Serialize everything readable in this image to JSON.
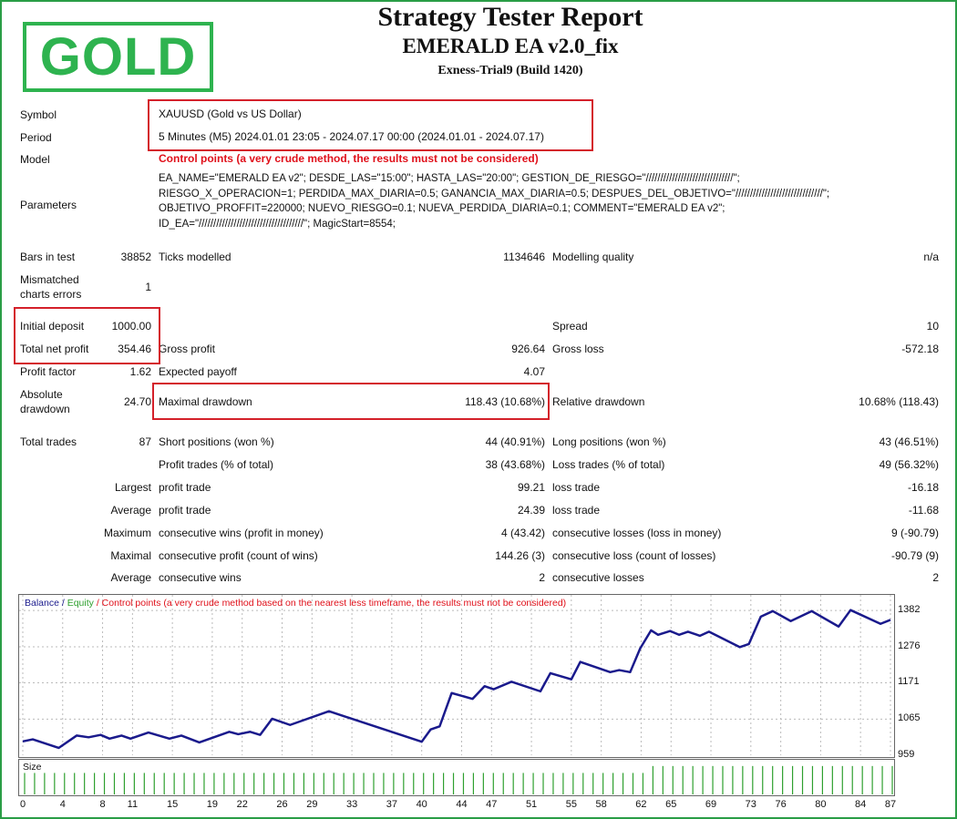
{
  "logo_text": "GOLD",
  "header": {
    "title": "Strategy Tester Report",
    "ea_name": "EMERALD EA v2.0_fix",
    "server": "Exness-Trial9 (Build 1420)"
  },
  "info": {
    "symbol_label": "Symbol",
    "symbol_value": "XAUUSD (Gold vs US Dollar)",
    "period_label": "Period",
    "period_value": "5 Minutes (M5) 2024.01.01 23:05 - 2024.07.17 00:00 (2024.01.01 - 2024.07.17)",
    "model_label": "Model",
    "model_value": "Control points (a very crude method, the results must not be considered)",
    "parameters_label": "Parameters",
    "parameters_value": "EA_NAME=\"EMERALD EA v2\"; DESDE_LAS=\"15:00\"; HASTA_LAS=\"20:00\"; GESTION_DE_RIESGO=\"//////////////////////////////\";\nRIESGO_X_OPERACION=1; PERDIDA_MAX_DIARIA=0.5; GANANCIA_MAX_DIARIA=0.5; DESPUES_DEL_OBJETIVO=\"//////////////////////////////\";\nOBJETIVO_PROFFIT=220000; NUEVO_RIESGO=0.1; NUEVA_PERDIDA_DIARIA=0.1; COMMENT=\"EMERALD EA v2\";\nID_EA=\"////////////////////////////////////\"; MagicStart=8554;"
  },
  "stats": [
    {
      "l1": "Bars in test",
      "v1": "38852",
      "l2": "Ticks modelled",
      "v2": "1134646",
      "l3": "Modelling quality",
      "v3": "n/a"
    },
    {
      "l1": "Mismatched\ncharts errors",
      "v1": "1",
      "l2": "",
      "v2": "",
      "l3": "",
      "v3": ""
    },
    {
      "l1": "Initial deposit",
      "v1": "1000.00",
      "l2": "",
      "v2": "",
      "l3": "Spread",
      "v3": "10"
    },
    {
      "l1": "Total net profit",
      "v1": "354.46",
      "l2": "Gross profit",
      "v2": "926.64",
      "l3": "Gross loss",
      "v3": "-572.18"
    },
    {
      "l1": "Profit factor",
      "v1": "1.62",
      "l2": "Expected payoff",
      "v2": "4.07",
      "l3": "",
      "v3": ""
    },
    {
      "l1": "Absolute\ndrawdown",
      "v1": "24.70",
      "l2": "Maximal drawdown",
      "v2": "118.43 (10.68%)",
      "l3": "Relative drawdown",
      "v3": "10.68% (118.43)"
    },
    {
      "l1": "Total trades",
      "v1": "87",
      "l2": "Short positions (won %)",
      "v2": "44 (40.91%)",
      "l3": "Long positions (won %)",
      "v3": "43 (46.51%)"
    },
    {
      "l1": "",
      "v1": "",
      "l2": "Profit trades (% of total)",
      "v2": "38 (43.68%)",
      "l3": "Loss trades (% of total)",
      "v3": "49 (56.32%)"
    },
    {
      "l1": "",
      "v1": "Largest",
      "l2": "profit trade",
      "v2": "99.21",
      "l3": "loss trade",
      "v3": "-16.18"
    },
    {
      "l1": "",
      "v1": "Average",
      "l2": "profit trade",
      "v2": "24.39",
      "l3": "loss trade",
      "v3": "-11.68"
    },
    {
      "l1": "",
      "v1": "Maximum",
      "l2": "consecutive wins (profit in money)",
      "v2": "4 (43.42)",
      "l3": "consecutive losses (loss in money)",
      "v3": "9 (-90.79)"
    },
    {
      "l1": "",
      "v1": "Maximal",
      "l2": "consecutive profit (count of wins)",
      "v2": "144.26 (3)",
      "l3": "consecutive loss (count of losses)",
      "v3": "-90.79 (9)"
    },
    {
      "l1": "",
      "v1": "Average",
      "l2": "consecutive wins",
      "v2": "2",
      "l3": "consecutive losses",
      "v3": "2"
    }
  ],
  "chart_data": {
    "type": "line",
    "legend": {
      "balance": "Balance",
      "sep1": " / ",
      "equity": "Equity",
      "sep2": " / ",
      "note": "Control points (a very crude method based on the nearest less timeframe, the results must not be considered)"
    },
    "colors": {
      "balance": "#1a1a8c",
      "equity": "#2ea02e",
      "note": "#e0101a",
      "size": "#2ea02e",
      "highlight": "#d4202a",
      "logo": "#2eb34f"
    },
    "yticks": [
      1382,
      1276,
      1171,
      1065,
      959
    ],
    "ylim": [
      957,
      1430
    ],
    "xticks": [
      0,
      4,
      8,
      11,
      15,
      19,
      22,
      26,
      29,
      33,
      37,
      40,
      44,
      47,
      51,
      55,
      58,
      62,
      65,
      69,
      73,
      76,
      80,
      84,
      87
    ],
    "xlim": [
      0,
      87
    ],
    "grid": true,
    "balance": [
      [
        0,
        1000
      ],
      [
        1,
        1006
      ],
      [
        3.6,
        981
      ],
      [
        5.4,
        1017
      ],
      [
        6.6,
        1012
      ],
      [
        7.8,
        1019
      ],
      [
        8.7,
        1008
      ],
      [
        9.9,
        1017
      ],
      [
        10.8,
        1008
      ],
      [
        12.6,
        1026
      ],
      [
        14.7,
        1008
      ],
      [
        15.9,
        1017
      ],
      [
        17.7,
        997
      ],
      [
        20.7,
        1028
      ],
      [
        21.6,
        1021
      ],
      [
        22.8,
        1028
      ],
      [
        23.8,
        1019
      ],
      [
        25,
        1066
      ],
      [
        26.8,
        1048
      ],
      [
        30.7,
        1088
      ],
      [
        40,
        999
      ],
      [
        40.9,
        1035
      ],
      [
        41.8,
        1044
      ],
      [
        43,
        1141
      ],
      [
        45.1,
        1124
      ],
      [
        46.3,
        1161
      ],
      [
        47.2,
        1152
      ],
      [
        49,
        1174
      ],
      [
        51.9,
        1146
      ],
      [
        52.9,
        1199
      ],
      [
        55,
        1181
      ],
      [
        55.9,
        1232
      ],
      [
        58.9,
        1202
      ],
      [
        59.8,
        1208
      ],
      [
        60.9,
        1202
      ],
      [
        61.9,
        1271
      ],
      [
        63,
        1324
      ],
      [
        63.7,
        1311
      ],
      [
        64.9,
        1322
      ],
      [
        65.8,
        1311
      ],
      [
        66.7,
        1320
      ],
      [
        67.9,
        1308
      ],
      [
        68.8,
        1320
      ],
      [
        71.9,
        1275
      ],
      [
        72.8,
        1284
      ],
      [
        74,
        1364
      ],
      [
        75.2,
        1380
      ],
      [
        77,
        1351
      ],
      [
        79.1,
        1380
      ],
      [
        81.8,
        1335
      ],
      [
        83,
        1383
      ],
      [
        86,
        1343
      ],
      [
        87,
        1354.46
      ]
    ],
    "size_label": "Size",
    "size_levels": {
      "trades_0_62": 0.62,
      "trades_63_87": 0.82
    }
  }
}
